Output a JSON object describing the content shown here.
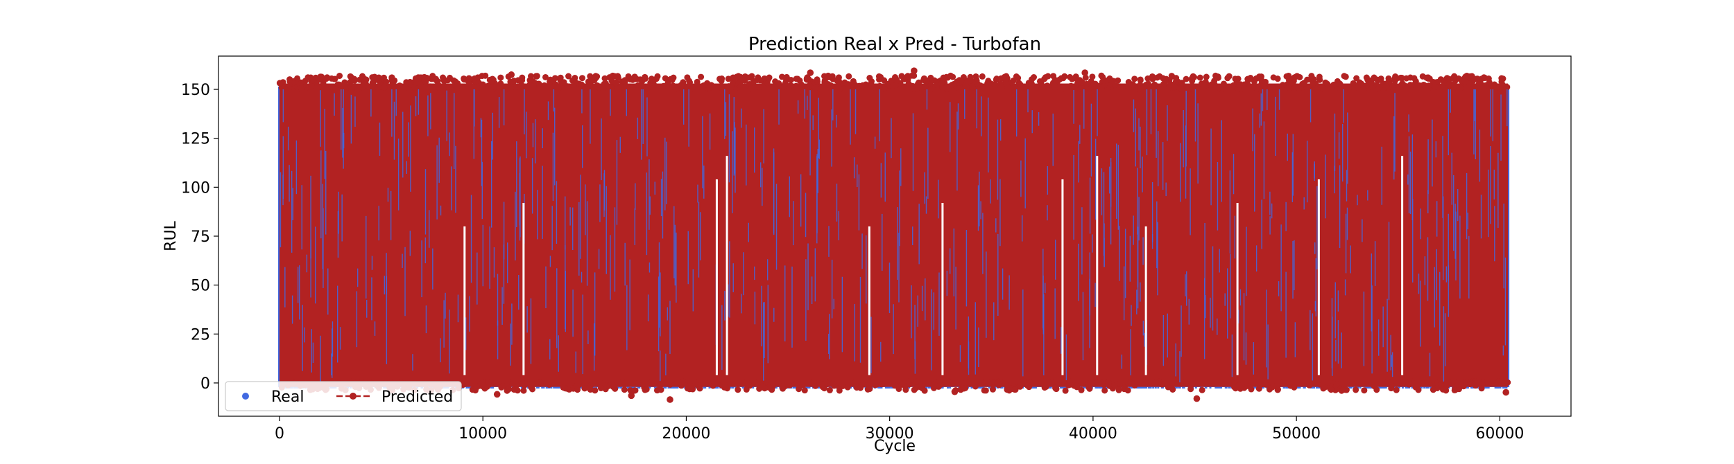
{
  "chart_data": {
    "type": "scatter",
    "title": "Prediction Real x Pred - Turbofan",
    "xlabel": "Cycle",
    "ylabel": "RUL",
    "xlim": [
      -3000,
      63500
    ],
    "ylim": [
      -17,
      167
    ],
    "xticks": [
      0,
      10000,
      20000,
      30000,
      40000,
      50000,
      60000
    ],
    "yticks": [
      0,
      25,
      50,
      75,
      100,
      125,
      150
    ],
    "x_range": [
      0,
      60400
    ],
    "series": [
      {
        "name": "Real",
        "color": "#4169e1",
        "marker": "circle",
        "linestyle": "none",
        "y_range": [
          0,
          150
        ]
      },
      {
        "name": "Predicted",
        "color": "#b22222",
        "marker": "circle",
        "linestyle": "dashed",
        "y_range": [
          -9,
          160
        ]
      }
    ],
    "legend": {
      "location": "lower-left",
      "columns": 2
    },
    "grid": false
  }
}
